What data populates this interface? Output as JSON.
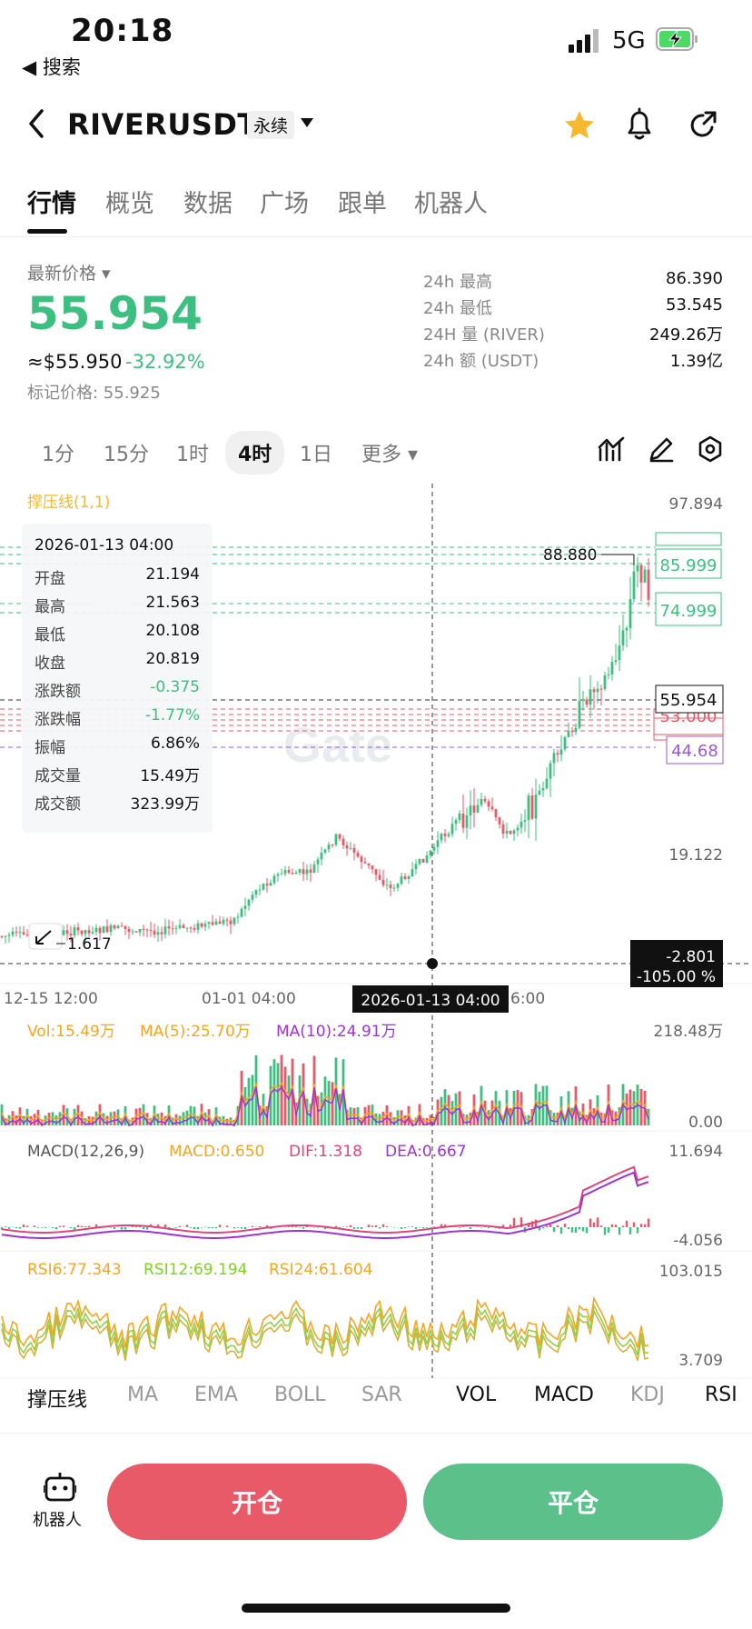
{
  "status": {
    "time": "20:18",
    "back_label": "◀ 搜索",
    "network": "5G"
  },
  "header": {
    "pair": "RIVERUSDT",
    "contract_type": "永续"
  },
  "tabs": [
    "行情",
    "概览",
    "数据",
    "广场",
    "跟单",
    "机器人"
  ],
  "price": {
    "label": "最新价格",
    "last": "55.954",
    "usd": "≈$55.950",
    "change": "-32.92%",
    "mark": "标记价格: 55.925"
  },
  "stats": [
    {
      "label": "24h  最高",
      "value": "86.390"
    },
    {
      "label": "24h  最低",
      "value": "53.545"
    },
    {
      "label": "24H  量 (RIVER)",
      "value": "249.26万"
    },
    {
      "label": "24h  额 (USDT)",
      "value": "1.39亿"
    }
  ],
  "timeframes": [
    "1分",
    "15分",
    "1时",
    "4时",
    "1日",
    "更多"
  ],
  "chart": {
    "indicator_title": "撑压线(1,1)",
    "price_top": "97.894",
    "price_mid": "19.122",
    "high_label": "88.880",
    "low_label": "1.617",
    "levels": [
      "85.999",
      "74.999",
      "55.954",
      "53.000",
      "44.68"
    ],
    "cursor_value": "-2.801",
    "cursor_pct": "-105.00 %",
    "x_labels": [
      "12-15 12:00",
      "01-01 04:00",
      "6:00"
    ],
    "cursor_date": "2026-01-13 04:00",
    "watermark": "Gate",
    "vol": {
      "vol": "Vol:15.49万",
      "ma5": "MA(5):25.70万",
      "ma10": "MA(10):24.91万",
      "top": "218.48万",
      "bottom": "0.00"
    },
    "macd": {
      "title": "MACD(12,26,9)",
      "macd": "MACD:0.650",
      "dif": "DIF:1.318",
      "dea": "DEA:0.667",
      "top": "11.694",
      "bottom": "-4.056"
    },
    "rsi": {
      "rsi6": "RSI6:77.343",
      "rsi12": "RSI12:69.194",
      "rsi24": "RSI24:61.604",
      "top": "103.015",
      "bottom": "3.709"
    }
  },
  "info_box": {
    "date": "2026-01-13 04:00",
    "rows": [
      {
        "label": "开盘",
        "value": "21.194"
      },
      {
        "label": "最高",
        "value": "21.563"
      },
      {
        "label": "最低",
        "value": "20.108"
      },
      {
        "label": "收盘",
        "value": "20.819"
      },
      {
        "label": "涨跌额",
        "value": "-0.375"
      },
      {
        "label": "涨跌幅",
        "value": "-1.77%"
      },
      {
        "label": "振幅",
        "value": "6.86%"
      },
      {
        "label": "成交量",
        "value": "15.49万"
      },
      {
        "label": "成交额",
        "value": "323.99万"
      }
    ]
  },
  "indicator_tabs": [
    {
      "label": "撑压线",
      "on": true
    },
    {
      "label": "MA",
      "on": false
    },
    {
      "label": "EMA",
      "on": false
    },
    {
      "label": "BOLL",
      "on": false
    },
    {
      "label": "SAR",
      "on": false
    },
    {
      "label": "VOL",
      "on": true
    },
    {
      "label": "MACD",
      "on": true
    },
    {
      "label": "KDJ",
      "on": false
    },
    {
      "label": "RSI",
      "on": true
    }
  ],
  "bottom": {
    "robot_label": "机器人",
    "open_label": "开仓",
    "close_label": "平仓"
  },
  "colors": {
    "up": "#3dbf81",
    "down": "#e85a68",
    "accent": "#f5b82e"
  }
}
